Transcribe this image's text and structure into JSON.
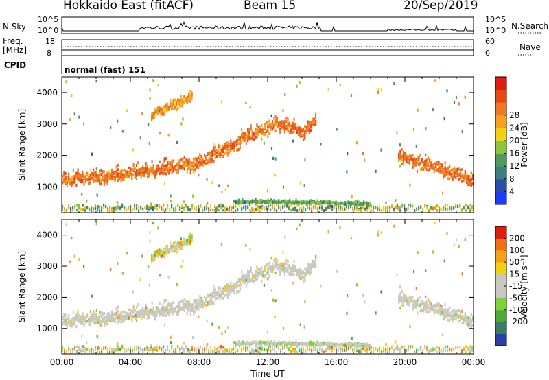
{
  "header": {
    "station": "Hokkaido East (fitACF)",
    "beam": "Beam 15",
    "date": "20/Sep/2019"
  },
  "top_panels": {
    "nsky_label": "N.Sky",
    "nsky_ticks": [
      "10^5",
      "10^0"
    ],
    "nsearch_label": "N.Search",
    "freq_label_1": "Freq.",
    "freq_label_2": "[MHz]",
    "freq_ticks": [
      "18",
      "8"
    ],
    "nave_label": "Nave",
    "nave_ticks": [
      "60",
      "0"
    ],
    "cpid_label": "CPID",
    "cpid_value": "normal (fast) 151"
  },
  "chart_data": [
    {
      "type": "heatmap",
      "panel": "power",
      "xlabel": "",
      "ylabel": "Slant Range [km]",
      "xlim_hours": [
        0,
        24
      ],
      "ylim_km": [
        180,
        4500
      ],
      "yticks": [
        1000,
        2000,
        3000,
        4000
      ],
      "colorbar": {
        "label": "Power [dB]",
        "ticks": [
          "4",
          "8",
          "12",
          "16",
          "20",
          "24",
          "28"
        ],
        "colors": [
          "#1c3cff",
          "#2a4fa8",
          "#3d7f7c",
          "#4f9a5c",
          "#8cc43a",
          "#f2d014",
          "#f5a01e",
          "#f07820",
          "#e84a16",
          "#e01e0e"
        ]
      },
      "echo_bands": [
        {
          "name": "main-band",
          "t": [
            0,
            2,
            4,
            6,
            7.8,
            8.6,
            9.2,
            10,
            10.8,
            12,
            13,
            13.5,
            14,
            14.5,
            14.8
          ],
          "r": [
            1250,
            1280,
            1450,
            1600,
            1720,
            2000,
            2150,
            2350,
            2650,
            2900,
            3000,
            2880,
            2650,
            3000,
            3150
          ],
          "level": 26
        },
        {
          "name": "evening-band",
          "t": [
            19.6,
            20.5,
            21.5,
            22.5,
            23.3,
            24
          ],
          "r": [
            2000,
            1800,
            1650,
            1500,
            1350,
            1150
          ],
          "level": 26
        },
        {
          "name": "morning-patch",
          "t": [
            5.2,
            6,
            7,
            7.6
          ],
          "r": [
            3300,
            3500,
            3700,
            3950
          ],
          "level": 24
        },
        {
          "name": "ground-scatter",
          "t": [
            10,
            11,
            12,
            13,
            14,
            15,
            16,
            17,
            18
          ],
          "r": [
            520,
            520,
            520,
            510,
            500,
            500,
            480,
            470,
            460
          ],
          "level": 14
        }
      ]
    },
    {
      "type": "heatmap",
      "panel": "velocity",
      "xlabel": "Time UT",
      "ylabel": "Slant Range [km]",
      "xticks": [
        "00:00",
        "04:00",
        "08:00",
        "12:00",
        "16:00",
        "20:00",
        "00:00"
      ],
      "xlim_hours": [
        0,
        24
      ],
      "ylim_km": [
        180,
        4500
      ],
      "yticks": [
        1000,
        2000,
        3000,
        4000
      ],
      "colorbar": {
        "label": "Velocity [m s⁻¹]",
        "ticks": [
          "200",
          "100",
          "50",
          "15",
          "-15",
          "-50",
          "-100",
          "-200"
        ],
        "colors": [
          "#2b3da8",
          "#3e7a6c",
          "#4caa38",
          "#7fd23a",
          "#c8c8c0",
          "#c8c8c0",
          "#f5d010",
          "#f5a018",
          "#f07018",
          "#e01e0e"
        ]
      }
    }
  ]
}
